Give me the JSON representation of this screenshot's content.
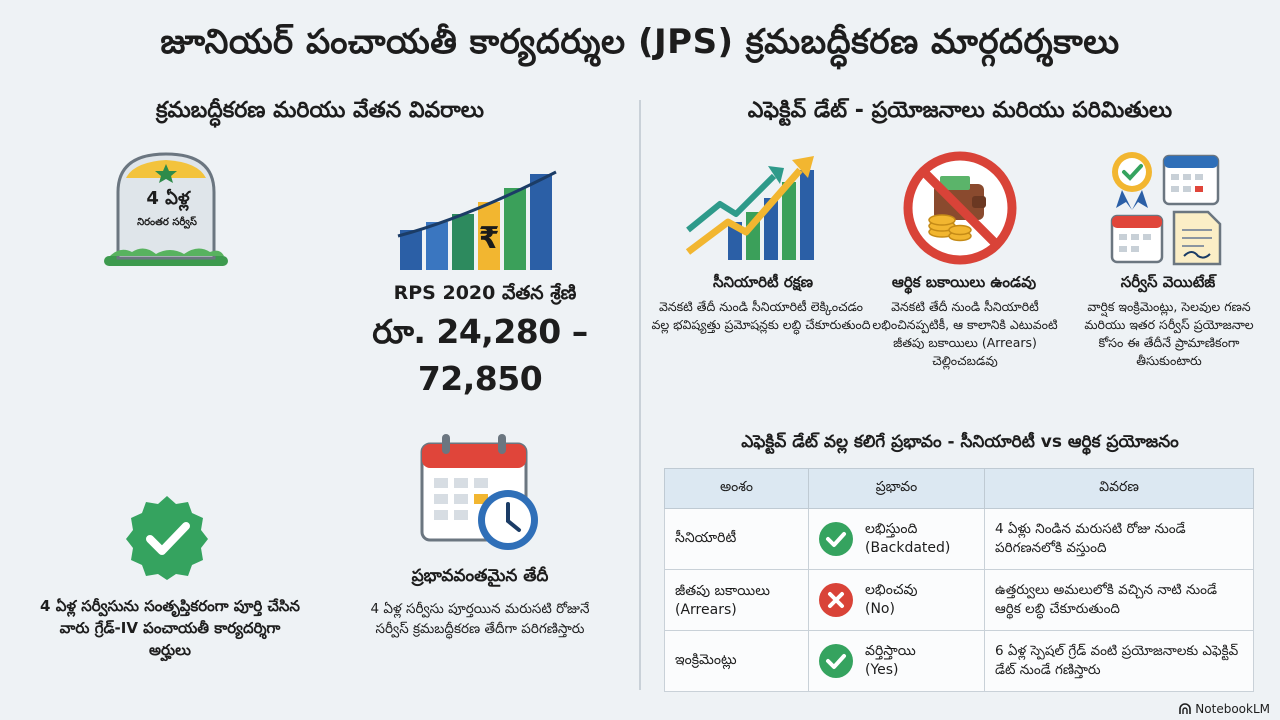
{
  "title": "జూనియర్ పంచాయతీ కార్యదర్శుల (JPS) క్రమబద్ధీకరణ మార్గదర్శకాలు",
  "left": {
    "section_title": "క్రమబద్ధీకరణ మరియు వేతన వివరాలు",
    "badge": {
      "years": "4 ఏళ్ల",
      "caption": "నిరంతర సర్వీస్"
    },
    "pay": {
      "label": "RPS 2020 వేతన శ్రేణి",
      "range": "రూ. 24,280 – 72,850",
      "currency_symbol": "₹"
    },
    "eligibility": "4 ఏళ్ల సర్వీసును సంతృప్తికరంగా పూర్తి చేసిన వారు గ్రేడ్-IV పంచాయతీ కార్యదర్శిగా అర్హులు",
    "effective": {
      "title": "ప్రభావవంతమైన తేదీ",
      "description": "4 ఏళ్ల సర్వీసు పూర్తయిన మరుసటి రోజునే సర్వీస్ క్రమబద్ధీకరణ తేదీగా పరిగణిస్తారు"
    }
  },
  "right": {
    "section_title": "ఎఫెక్టివ్ డేట్ - ప్రయోజనాలు మరియు పరిమితులు",
    "benefits": [
      {
        "icon": "growth-chart-icon",
        "title": "సీనియారిటీ రక్షణ",
        "description": "వెనకటి తేదీ నుండి సీనియారిటీ లెక్కించడం వల్ల భవిష్యత్తు ప్రమోషన్లకు లబ్ధి చేకూరుతుంది"
      },
      {
        "icon": "no-wallet-icon",
        "title": "ఆర్థిక బకాయిలు ఉండవు",
        "description": "వెనకటి తేదీ నుండి సీనియారిటీ లభించినప్పటికీ, ఆ కాలానికి ఎటువంటి జీతపు బకాయిలు (Arrears) చెల్లించబడవు"
      },
      {
        "icon": "service-documents-icon",
        "title": "సర్వీస్ వెయిటేజ్",
        "description": "వార్షిక ఇంక్రిమెంట్లు, సెలవుల గణన మరియు ఇతర సర్వీస్ ప్రయోజనాల కోసం ఈ తేదీనే ప్రామాణికంగా తీసుకుంటారు"
      }
    ],
    "table": {
      "title": "ఎఫెక్టివ్ డేట్ వల్ల కలిగే ప్రభావం - సీనియారిటీ vs ఆర్థిక ప్రయోజనం",
      "headers": [
        "అంశం",
        "ప్రభావం",
        "వివరణ"
      ],
      "rows": [
        {
          "aspect": "సీనియారిటీ",
          "status": "yes",
          "impact_line1": "లభిస్తుంది",
          "impact_line2": "(Backdated)",
          "detail": "4 ఏళ్లు నిండిన మరుసటి రోజు నుండే పరిగణనలోకి వస్తుంది"
        },
        {
          "aspect": "జీతపు బకాయిలు (Arrears)",
          "status": "no",
          "impact_line1": "లభించవు",
          "impact_line2": "(No)",
          "detail": "ఉత్తర్వులు అమలులోకి వచ్చిన నాటి నుండే ఆర్థిక లబ్ధి చేకూరుతుంది"
        },
        {
          "aspect": "ఇంక్రిమెంట్లు",
          "status": "yes",
          "impact_line1": "వర్తిస్తాయి",
          "impact_line2": "(Yes)",
          "detail": "6 ఏళ్ల స్పెషల్ గ్రేడ్ వంటి ప్రయోజనాలకు ఎఫెక్టివ్ డేట్ నుండే గణిస్తారు"
        }
      ]
    }
  },
  "branding": "NotebookLM",
  "colors": {
    "green": "#2f9e5e",
    "blue": "#1f4f8a",
    "gold": "#f2b630",
    "red": "#d94338",
    "teal": "#2a8c7a"
  }
}
